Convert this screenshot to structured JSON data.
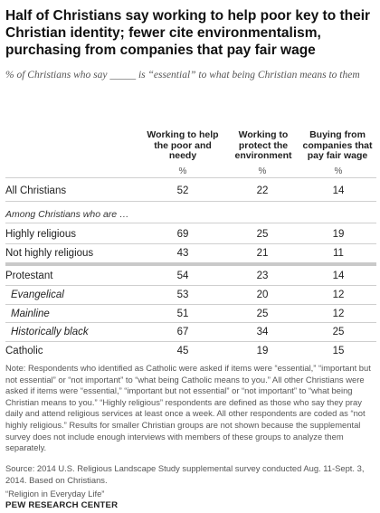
{
  "title": "Half of Christians say working to help poor key to their Christian identity; fewer cite environmentalism, purchasing from companies that pay fair wage",
  "subtitle": "% of Christians who say _____ is “essential” to what being Christian means to them",
  "chart_data": {
    "type": "table",
    "columns": [
      "Working to help the poor and needy",
      "Working to protect the environment",
      "Buying from companies that pay fair wage"
    ],
    "unit_row": [
      "%",
      "%",
      "%"
    ],
    "section_label": "Among Christians who are …",
    "rows": [
      {
        "label": "All Christians",
        "values": [
          52,
          22,
          14
        ]
      },
      {
        "label": "Highly religious",
        "values": [
          69,
          25,
          19
        ]
      },
      {
        "label": "Not highly religious",
        "values": [
          43,
          21,
          11
        ]
      },
      {
        "label": "Protestant",
        "values": [
          54,
          23,
          14
        ]
      },
      {
        "label": "Evangelical",
        "values": [
          53,
          20,
          12
        ]
      },
      {
        "label": "Mainline",
        "values": [
          51,
          25,
          12
        ]
      },
      {
        "label": "Historically black",
        "values": [
          67,
          34,
          25
        ]
      },
      {
        "label": "Catholic",
        "values": [
          45,
          19,
          15
        ]
      }
    ]
  },
  "note": "Note: Respondents who identified as Catholic were asked if items were “essential,” “important but not essential” or “not important” to “what being Catholic means to you.” All other Christians were asked if items were “essential,” “important but not essential” or “not important” to “what being Christian means to you.” “Highly religious” respondents are defined as those who say they pray daily and attend religious services at least once a week. All other respondents are coded as “not highly religious.” Results for smaller Christian groups are not shown because the supplemental survey does not include enough interviews with members of these groups to analyze them separately.",
  "source": "Source: 2014 U.S. Religious Landscape Study supplemental survey conducted Aug. 11-Sept. 3, 2014. Based on Christians.",
  "report": "“Religion in Everyday Life”",
  "brand": "PEW RESEARCH CENTER"
}
